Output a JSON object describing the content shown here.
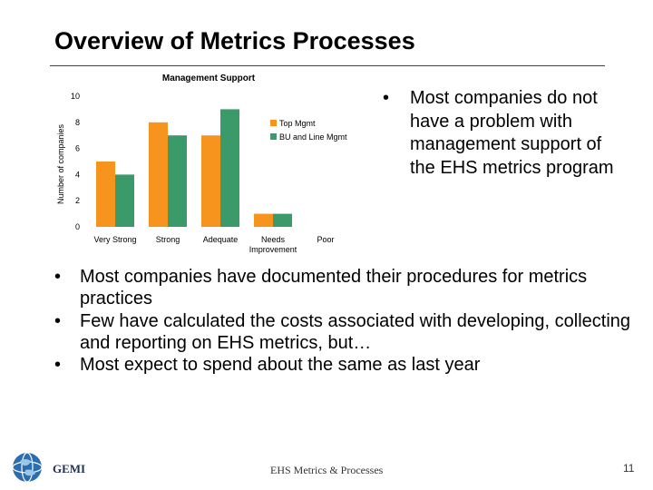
{
  "slide": {
    "title": "Overview of Metrics Processes",
    "right_bullets": [
      "Most companies do not have a problem with management support of the EHS metrics program"
    ],
    "bullets": [
      "Most companies have documented their procedures for metrics practices",
      "Few have calculated the costs associated with developing, collecting and reporting on EHS metrics, but…",
      "Most expect to spend about the same as last year"
    ],
    "footer": {
      "center": "EHS Metrics & Processes",
      "page": "11",
      "logo_text": "GEMI",
      "logo_icon": "globe-icon"
    }
  },
  "chart_data": {
    "type": "bar",
    "title": "Management Support",
    "xlabel": "",
    "ylabel": "Number of companies",
    "categories": [
      "Very Strong",
      "Strong",
      "Adequate",
      "Needs Improvement",
      "Poor"
    ],
    "ylim": [
      0,
      10
    ],
    "yticks": [
      0,
      2,
      4,
      6,
      8,
      10
    ],
    "series": [
      {
        "name": "Top Mgmt",
        "color": "#f7941d",
        "values": [
          5,
          8,
          7,
          1,
          0
        ]
      },
      {
        "name": "BU and Line Mgmt",
        "color": "#3a9a6a",
        "values": [
          4,
          7,
          9,
          1,
          0
        ]
      }
    ],
    "legend": "right",
    "grid": false
  }
}
